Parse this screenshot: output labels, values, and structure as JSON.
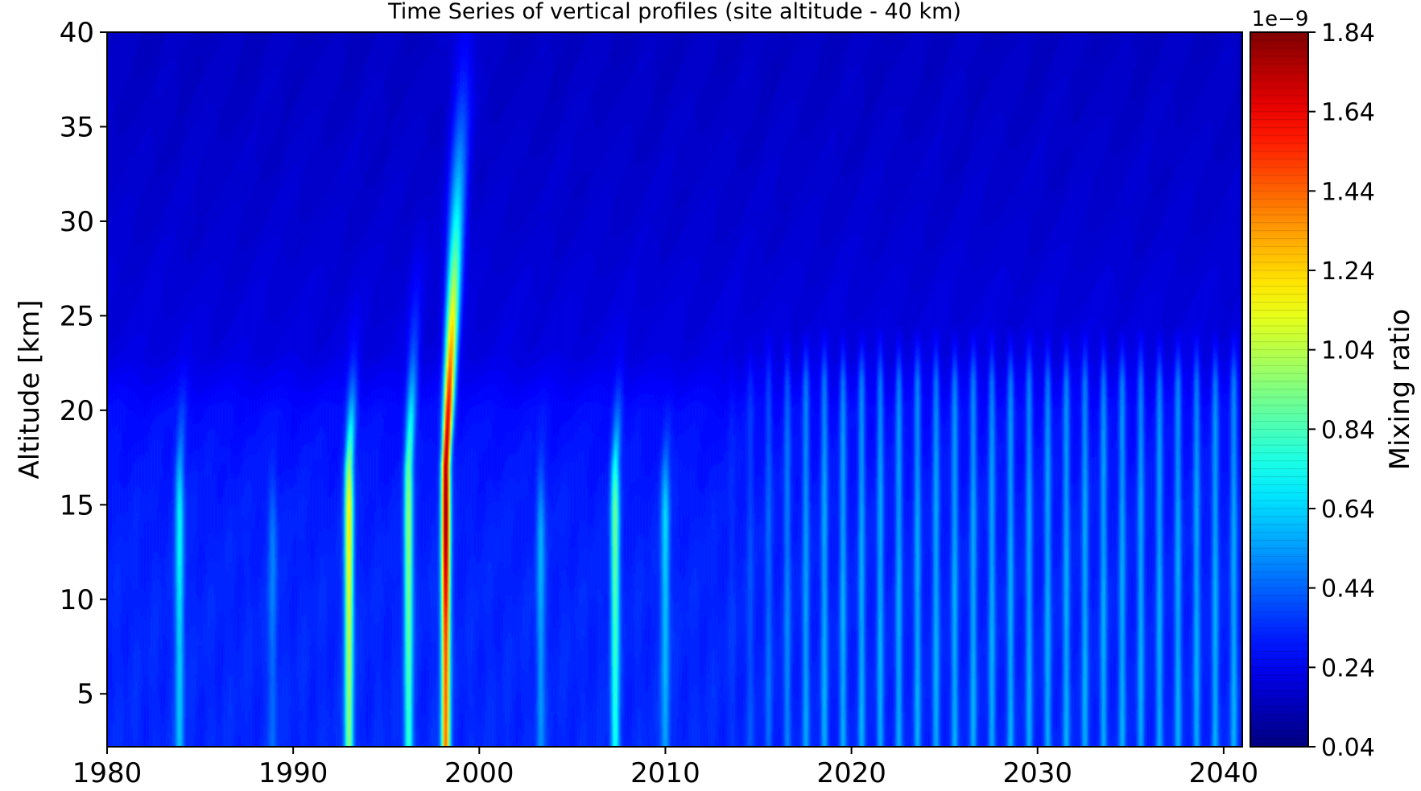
{
  "chart_data": {
    "type": "heatmap",
    "title": "Time Series of vertical profiles (site altitude - 40 km)",
    "xlabel": "",
    "ylabel": "Altitude [km]",
    "xlim": [
      1980,
      2041
    ],
    "ylim": [
      2.2,
      40
    ],
    "x_ticks": [
      1980,
      1990,
      2000,
      2010,
      2020,
      2030,
      2040
    ],
    "y_ticks": [
      5,
      10,
      15,
      20,
      25,
      30,
      35,
      40
    ],
    "colorbar": {
      "label": "Mixing ratio",
      "offset_text": "1e−9",
      "ticks": [
        "0.04",
        "0.24",
        "0.44",
        "0.64",
        "0.84",
        "1.04",
        "1.24",
        "1.44",
        "1.64",
        "1.84"
      ],
      "range": [
        0.04,
        1.84
      ],
      "scale": 1e-09,
      "colormap": "jet"
    },
    "background_profile": {
      "altitudes_km": [
        2.2,
        10,
        15,
        20,
        23,
        30,
        40
      ],
      "values": [
        0.33,
        0.33,
        0.32,
        0.29,
        0.22,
        0.19,
        0.17
      ]
    },
    "late_period_oscillation": {
      "start_year": 2013,
      "peak_value": 0.56,
      "top_altitude_km": 21.5
    },
    "plumes": [
      {
        "year": 1983.9,
        "peak_altitude_km": 14,
        "peak_value": 0.72,
        "top_altitude_km": 22.5
      },
      {
        "year": 1988.9,
        "peak_altitude_km": 13,
        "peak_value": 0.5,
        "top_altitude_km": 19
      },
      {
        "year": 1993.0,
        "peak_altitude_km": 14,
        "peak_value": 1.22,
        "top_altitude_km": 24
      },
      {
        "year": 1996.2,
        "peak_altitude_km": 14,
        "peak_value": 1.0,
        "top_altitude_km": 28
      },
      {
        "year": 1998.2,
        "peak_altitude_km": 15,
        "peak_value": 1.84,
        "top_altitude_km": 40
      },
      {
        "year": 2003.3,
        "peak_altitude_km": 13,
        "peak_value": 0.58,
        "top_altitude_km": 20
      },
      {
        "year": 2007.3,
        "peak_altitude_km": 14,
        "peak_value": 0.92,
        "top_altitude_km": 23
      },
      {
        "year": 2010.0,
        "peak_altitude_km": 14,
        "peak_value": 0.66,
        "top_altitude_km": 21
      }
    ],
    "colors": {
      "axis": "#000000",
      "background": "#ffffff"
    }
  }
}
